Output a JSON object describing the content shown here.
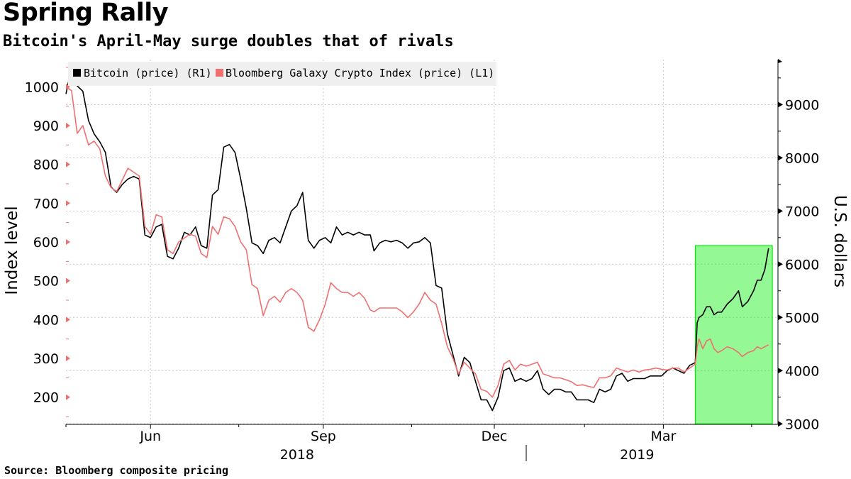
{
  "title": "Spring Rally",
  "subtitle": "Bitcoin's April-May surge doubles that of rivals",
  "source": "Source: Bloomberg composite pricing",
  "colors": {
    "bitcoin": "#000000",
    "galaxy": "#f07070",
    "highlight": "#00ee00",
    "grid": "#c8c8c8"
  },
  "chart_data": {
    "type": "line",
    "title": "Spring Rally",
    "subtitle": "Bitcoin's April-May surge doubles that of rivals",
    "ylabel_left": "Index level",
    "ylabel_right": "U.S. dollars",
    "ylim_left": [
      130,
      1070
    ],
    "ylim_right": [
      2990,
      9845
    ],
    "yticks_left": [
      200,
      300,
      400,
      500,
      600,
      700,
      800,
      900,
      1000
    ],
    "yticks_right": [
      3000,
      4000,
      5000,
      6000,
      7000,
      8000,
      9000
    ],
    "xlim": [
      "2018-05-01",
      "2019-05-15"
    ],
    "xticks": [
      {
        "date": "2018-06-15",
        "label": "Jun"
      },
      {
        "date": "2018-09-15",
        "label": "Sep"
      },
      {
        "date": "2018-12-15",
        "label": "Dec"
      },
      {
        "date": "2019-03-15",
        "label": "Mar"
      }
    ],
    "year_labels": [
      {
        "date": "2018-09-01",
        "label": "2018"
      },
      {
        "date": "2019-03-01",
        "label": "2019"
      }
    ],
    "year_separator": "2019-01-01",
    "legend_position": "top-left",
    "highlight": {
      "from": "2019-04-01",
      "to": "2019-05-12",
      "y_from": 3000,
      "y_to": 6350,
      "axis": "right"
    },
    "series": [
      {
        "name": "Bitcoin (price) (R1)",
        "axis": "right",
        "points": [
          [
            "2018-05-01",
            9200
          ],
          [
            "2018-05-04",
            9700
          ],
          [
            "2018-05-07",
            9350
          ],
          [
            "2018-05-10",
            9250
          ],
          [
            "2018-05-13",
            8700
          ],
          [
            "2018-05-16",
            8450
          ],
          [
            "2018-05-19",
            8300
          ],
          [
            "2018-05-22",
            8100
          ],
          [
            "2018-05-25",
            7450
          ],
          [
            "2018-05-28",
            7350
          ],
          [
            "2018-05-31",
            7500
          ],
          [
            "2018-06-03",
            7600
          ],
          [
            "2018-06-06",
            7650
          ],
          [
            "2018-06-09",
            7600
          ],
          [
            "2018-06-12",
            6550
          ],
          [
            "2018-06-15",
            6500
          ],
          [
            "2018-06-18",
            6700
          ],
          [
            "2018-06-21",
            6750
          ],
          [
            "2018-06-24",
            6150
          ],
          [
            "2018-06-27",
            6100
          ],
          [
            "2018-06-30",
            6300
          ],
          [
            "2018-07-03",
            6600
          ],
          [
            "2018-07-06",
            6550
          ],
          [
            "2018-07-09",
            6700
          ],
          [
            "2018-07-12",
            6350
          ],
          [
            "2018-07-15",
            6300
          ],
          [
            "2018-07-18",
            7300
          ],
          [
            "2018-07-21",
            7400
          ],
          [
            "2018-07-24",
            8200
          ],
          [
            "2018-07-27",
            8250
          ],
          [
            "2018-07-30",
            8100
          ],
          [
            "2018-08-02",
            7600
          ],
          [
            "2018-08-05",
            7050
          ],
          [
            "2018-08-08",
            6400
          ],
          [
            "2018-08-11",
            6350
          ],
          [
            "2018-08-14",
            6200
          ],
          [
            "2018-08-17",
            6450
          ],
          [
            "2018-08-20",
            6500
          ],
          [
            "2018-08-23",
            6400
          ],
          [
            "2018-08-26",
            6700
          ],
          [
            "2018-08-29",
            7000
          ],
          [
            "2018-09-01",
            7100
          ],
          [
            "2018-09-04",
            7350
          ],
          [
            "2018-09-07",
            6450
          ],
          [
            "2018-09-10",
            6300
          ],
          [
            "2018-09-13",
            6450
          ],
          [
            "2018-09-16",
            6500
          ],
          [
            "2018-09-19",
            6400
          ],
          [
            "2018-09-22",
            6700
          ],
          [
            "2018-09-25",
            6550
          ],
          [
            "2018-09-28",
            6600
          ],
          [
            "2018-10-01",
            6550
          ],
          [
            "2018-10-04",
            6600
          ],
          [
            "2018-10-07",
            6550
          ],
          [
            "2018-10-10",
            6550
          ],
          [
            "2018-10-12",
            6250
          ],
          [
            "2018-10-15",
            6400
          ],
          [
            "2018-10-18",
            6450
          ],
          [
            "2018-10-21",
            6420
          ],
          [
            "2018-10-24",
            6450
          ],
          [
            "2018-10-27",
            6400
          ],
          [
            "2018-10-30",
            6300
          ],
          [
            "2018-11-02",
            6400
          ],
          [
            "2018-11-05",
            6420
          ],
          [
            "2018-11-08",
            6500
          ],
          [
            "2018-11-11",
            6400
          ],
          [
            "2018-11-14",
            5600
          ],
          [
            "2018-11-17",
            5550
          ],
          [
            "2018-11-20",
            4700
          ],
          [
            "2018-11-23",
            4300
          ],
          [
            "2018-11-26",
            3900
          ],
          [
            "2018-11-29",
            4250
          ],
          [
            "2018-12-02",
            4150
          ],
          [
            "2018-12-05",
            3800
          ],
          [
            "2018-12-08",
            3450
          ],
          [
            "2018-12-11",
            3450
          ],
          [
            "2018-12-14",
            3250
          ],
          [
            "2018-12-17",
            3500
          ],
          [
            "2018-12-20",
            4000
          ],
          [
            "2018-12-23",
            4050
          ],
          [
            "2018-12-26",
            3800
          ],
          [
            "2018-12-29",
            3850
          ],
          [
            "2019-01-01",
            3800
          ],
          [
            "2019-01-04",
            3850
          ],
          [
            "2019-01-07",
            4000
          ],
          [
            "2019-01-10",
            3650
          ],
          [
            "2019-01-13",
            3550
          ],
          [
            "2019-01-16",
            3650
          ],
          [
            "2019-01-19",
            3650
          ],
          [
            "2019-01-22",
            3600
          ],
          [
            "2019-01-25",
            3600
          ],
          [
            "2019-01-28",
            3450
          ],
          [
            "2019-01-31",
            3450
          ],
          [
            "2019-02-03",
            3450
          ],
          [
            "2019-02-06",
            3400
          ],
          [
            "2019-02-09",
            3650
          ],
          [
            "2019-02-12",
            3600
          ],
          [
            "2019-02-15",
            3650
          ],
          [
            "2019-02-18",
            3900
          ],
          [
            "2019-02-21",
            3950
          ],
          [
            "2019-02-24",
            3800
          ],
          [
            "2019-02-27",
            3850
          ],
          [
            "2019-03-02",
            3850
          ],
          [
            "2019-03-05",
            3850
          ],
          [
            "2019-03-08",
            3900
          ],
          [
            "2019-03-11",
            3900
          ],
          [
            "2019-03-14",
            3900
          ],
          [
            "2019-03-17",
            4000
          ],
          [
            "2019-03-20",
            4050
          ],
          [
            "2019-03-23",
            4000
          ],
          [
            "2019-03-26",
            3950
          ],
          [
            "2019-03-29",
            4100
          ],
          [
            "2019-04-01",
            4150
          ],
          [
            "2019-04-02",
            4900
          ],
          [
            "2019-04-03",
            5000
          ],
          [
            "2019-04-05",
            5050
          ],
          [
            "2019-04-07",
            5200
          ],
          [
            "2019-04-09",
            5200
          ],
          [
            "2019-04-11",
            5050
          ],
          [
            "2019-04-13",
            5100
          ],
          [
            "2019-04-15",
            5100
          ],
          [
            "2019-04-18",
            5250
          ],
          [
            "2019-04-21",
            5350
          ],
          [
            "2019-04-24",
            5500
          ],
          [
            "2019-04-26",
            5200
          ],
          [
            "2019-04-29",
            5300
          ],
          [
            "2019-05-02",
            5500
          ],
          [
            "2019-05-04",
            5700
          ],
          [
            "2019-05-06",
            5700
          ],
          [
            "2019-05-08",
            5900
          ],
          [
            "2019-05-10",
            6300
          ]
        ]
      },
      {
        "name": "Bloomberg Galaxy Crypto Index (price) (L1)",
        "axis": "left",
        "points": [
          [
            "2018-05-01",
            1000
          ],
          [
            "2018-05-04",
            990
          ],
          [
            "2018-05-07",
            880
          ],
          [
            "2018-05-10",
            900
          ],
          [
            "2018-05-13",
            850
          ],
          [
            "2018-05-16",
            860
          ],
          [
            "2018-05-19",
            840
          ],
          [
            "2018-05-22",
            770
          ],
          [
            "2018-05-25",
            740
          ],
          [
            "2018-05-28",
            730
          ],
          [
            "2018-05-31",
            760
          ],
          [
            "2018-06-03",
            790
          ],
          [
            "2018-06-06",
            780
          ],
          [
            "2018-06-09",
            770
          ],
          [
            "2018-06-12",
            640
          ],
          [
            "2018-06-15",
            620
          ],
          [
            "2018-06-18",
            670
          ],
          [
            "2018-06-21",
            665
          ],
          [
            "2018-06-24",
            580
          ],
          [
            "2018-06-27",
            570
          ],
          [
            "2018-06-30",
            600
          ],
          [
            "2018-07-03",
            610
          ],
          [
            "2018-07-06",
            620
          ],
          [
            "2018-07-09",
            615
          ],
          [
            "2018-07-12",
            570
          ],
          [
            "2018-07-15",
            560
          ],
          [
            "2018-07-18",
            640
          ],
          [
            "2018-07-21",
            620
          ],
          [
            "2018-07-24",
            665
          ],
          [
            "2018-07-27",
            660
          ],
          [
            "2018-07-30",
            640
          ],
          [
            "2018-08-02",
            600
          ],
          [
            "2018-08-05",
            580
          ],
          [
            "2018-08-08",
            490
          ],
          [
            "2018-08-11",
            480
          ],
          [
            "2018-08-14",
            410
          ],
          [
            "2018-08-17",
            450
          ],
          [
            "2018-08-20",
            460
          ],
          [
            "2018-08-23",
            445
          ],
          [
            "2018-08-26",
            470
          ],
          [
            "2018-08-29",
            480
          ],
          [
            "2018-09-01",
            470
          ],
          [
            "2018-09-04",
            450
          ],
          [
            "2018-09-07",
            380
          ],
          [
            "2018-09-10",
            370
          ],
          [
            "2018-09-13",
            400
          ],
          [
            "2018-09-16",
            440
          ],
          [
            "2018-09-19",
            495
          ],
          [
            "2018-09-22",
            480
          ],
          [
            "2018-09-25",
            470
          ],
          [
            "2018-09-28",
            470
          ],
          [
            "2018-10-01",
            460
          ],
          [
            "2018-10-04",
            470
          ],
          [
            "2018-10-07",
            455
          ],
          [
            "2018-10-10",
            425
          ],
          [
            "2018-10-12",
            420
          ],
          [
            "2018-10-15",
            430
          ],
          [
            "2018-10-18",
            430
          ],
          [
            "2018-10-21",
            430
          ],
          [
            "2018-10-24",
            430
          ],
          [
            "2018-10-27",
            420
          ],
          [
            "2018-10-30",
            405
          ],
          [
            "2018-11-02",
            420
          ],
          [
            "2018-11-05",
            440
          ],
          [
            "2018-11-08",
            470
          ],
          [
            "2018-11-11",
            450
          ],
          [
            "2018-11-14",
            440
          ],
          [
            "2018-11-17",
            390
          ],
          [
            "2018-11-20",
            330
          ],
          [
            "2018-11-23",
            300
          ],
          [
            "2018-11-26",
            260
          ],
          [
            "2018-11-29",
            290
          ],
          [
            "2018-12-02",
            275
          ],
          [
            "2018-12-05",
            260
          ],
          [
            "2018-12-08",
            220
          ],
          [
            "2018-12-11",
            215
          ],
          [
            "2018-12-14",
            200
          ],
          [
            "2018-12-17",
            230
          ],
          [
            "2018-12-20",
            285
          ],
          [
            "2018-12-23",
            295
          ],
          [
            "2018-12-26",
            270
          ],
          [
            "2018-12-29",
            285
          ],
          [
            "2019-01-01",
            280
          ],
          [
            "2019-01-04",
            285
          ],
          [
            "2019-01-07",
            290
          ],
          [
            "2019-01-10",
            260
          ],
          [
            "2019-01-13",
            255
          ],
          [
            "2019-01-16",
            250
          ],
          [
            "2019-01-19",
            250
          ],
          [
            "2019-01-22",
            245
          ],
          [
            "2019-01-25",
            240
          ],
          [
            "2019-01-28",
            230
          ],
          [
            "2019-01-31",
            232
          ],
          [
            "2019-02-03",
            228
          ],
          [
            "2019-02-06",
            225
          ],
          [
            "2019-02-09",
            250
          ],
          [
            "2019-02-12",
            250
          ],
          [
            "2019-02-15",
            255
          ],
          [
            "2019-02-18",
            275
          ],
          [
            "2019-02-21",
            270
          ],
          [
            "2019-02-24",
            265
          ],
          [
            "2019-02-27",
            270
          ],
          [
            "2019-03-02",
            265
          ],
          [
            "2019-03-05",
            270
          ],
          [
            "2019-03-08",
            272
          ],
          [
            "2019-03-11",
            275
          ],
          [
            "2019-03-14",
            272
          ],
          [
            "2019-03-17",
            270
          ],
          [
            "2019-03-20",
            275
          ],
          [
            "2019-03-23",
            275
          ],
          [
            "2019-03-26",
            265
          ],
          [
            "2019-03-29",
            275
          ],
          [
            "2019-04-01",
            285
          ],
          [
            "2019-04-02",
            330
          ],
          [
            "2019-04-03",
            350
          ],
          [
            "2019-04-05",
            325
          ],
          [
            "2019-04-07",
            345
          ],
          [
            "2019-04-09",
            350
          ],
          [
            "2019-04-11",
            325
          ],
          [
            "2019-04-13",
            315
          ],
          [
            "2019-04-15",
            320
          ],
          [
            "2019-04-18",
            330
          ],
          [
            "2019-04-21",
            325
          ],
          [
            "2019-04-24",
            315
          ],
          [
            "2019-04-26",
            305
          ],
          [
            "2019-04-29",
            315
          ],
          [
            "2019-05-02",
            320
          ],
          [
            "2019-05-04",
            330
          ],
          [
            "2019-05-06",
            325
          ],
          [
            "2019-05-08",
            330
          ],
          [
            "2019-05-10",
            335
          ]
        ]
      }
    ]
  }
}
